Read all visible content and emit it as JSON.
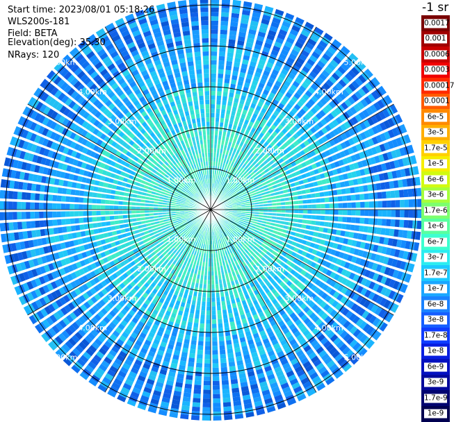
{
  "info": {
    "start_time": "Start time: 2023/08/01 05:18:26",
    "instrument": "WLS200s-181",
    "field": "Field: BETA",
    "elevation": "Elevation(deg): 35.30",
    "nrays": "NRays: 120"
  },
  "unit_label": "-1 sr",
  "colorbar": {
    "labels": [
      "0.0017",
      "0.001",
      "0.0006",
      "0.0003",
      "0.00017",
      "0.0001",
      "6e-5",
      "3e-5",
      "1.7e-5",
      "1e-5",
      "6e-6",
      "3e-6",
      "1.7e-6",
      "1e-6",
      "6e-7",
      "3e-7",
      "1.7e-7",
      "1e-7",
      "6e-8",
      "3e-8",
      "1.7e-8",
      "1e-8",
      "6e-9",
      "3e-9",
      "1.7e-9",
      "1e-9"
    ],
    "colors": [
      "#7a0000",
      "#a00000",
      "#c80000",
      "#f00000",
      "#ff2a00",
      "#ff5a00",
      "#ff8a00",
      "#ffae00",
      "#ffd000",
      "#f6ee00",
      "#d2fa10",
      "#a6ff3c",
      "#7cff6e",
      "#58ffa0",
      "#3cffd0",
      "#2cecf0",
      "#1ccaff",
      "#1aa6ff",
      "#1a82ff",
      "#145eff",
      "#0e3cff",
      "#081ee0",
      "#0410c0",
      "#02089c",
      "#000470",
      "#000050"
    ]
  },
  "range_rings": {
    "labels": [
      "1.00km",
      "2.00km",
      "3.00km",
      "4.00km",
      "5.00km"
    ]
  },
  "color_map": {
    "ring": "#000000",
    "spoke": "#000000",
    "gap": "#ffffff"
  }
}
